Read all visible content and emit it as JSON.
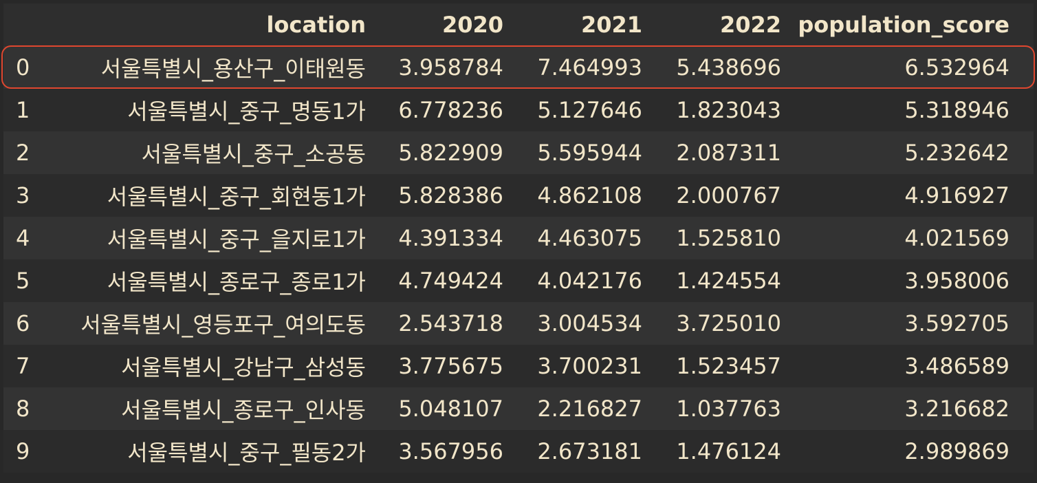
{
  "table": {
    "columns": [
      "",
      "location",
      "2020",
      "2021",
      "2022",
      "population_score"
    ],
    "rows": [
      {
        "index": "0",
        "location": "서울특별시_용산구_이태원동",
        "y2020": "3.958784",
        "y2021": "7.464993",
        "y2022": "5.438696",
        "score": "6.532964"
      },
      {
        "index": "1",
        "location": "서울특별시_중구_명동1가",
        "y2020": "6.778236",
        "y2021": "5.127646",
        "y2022": "1.823043",
        "score": "5.318946"
      },
      {
        "index": "2",
        "location": "서울특별시_중구_소공동",
        "y2020": "5.822909",
        "y2021": "5.595944",
        "y2022": "2.087311",
        "score": "5.232642"
      },
      {
        "index": "3",
        "location": "서울특별시_중구_회현동1가",
        "y2020": "5.828386",
        "y2021": "4.862108",
        "y2022": "2.000767",
        "score": "4.916927"
      },
      {
        "index": "4",
        "location": "서울특별시_중구_을지로1가",
        "y2020": "4.391334",
        "y2021": "4.463075",
        "y2022": "1.525810",
        "score": "4.021569"
      },
      {
        "index": "5",
        "location": "서울특별시_종로구_종로1가",
        "y2020": "4.749424",
        "y2021": "4.042176",
        "y2022": "1.424554",
        "score": "3.958006"
      },
      {
        "index": "6",
        "location": "서울특별시_영등포구_여의도동",
        "y2020": "2.543718",
        "y2021": "3.004534",
        "y2022": "3.725010",
        "score": "3.592705"
      },
      {
        "index": "7",
        "location": "서울특별시_강남구_삼성동",
        "y2020": "3.775675",
        "y2021": "3.700231",
        "y2022": "1.523457",
        "score": "3.486589"
      },
      {
        "index": "8",
        "location": "서울특별시_종로구_인사동",
        "y2020": "5.048107",
        "y2021": "2.216827",
        "y2022": "1.037763",
        "score": "3.216682"
      },
      {
        "index": "9",
        "location": "서울특별시_중구_필동2가",
        "y2020": "3.567956",
        "y2021": "2.673181",
        "y2022": "1.476124",
        "score": "2.989869"
      }
    ],
    "highlighted_row_index": "0"
  },
  "colors": {
    "background": "#282828",
    "text": "#f2e6c9",
    "highlight_border": "#e0472f"
  }
}
